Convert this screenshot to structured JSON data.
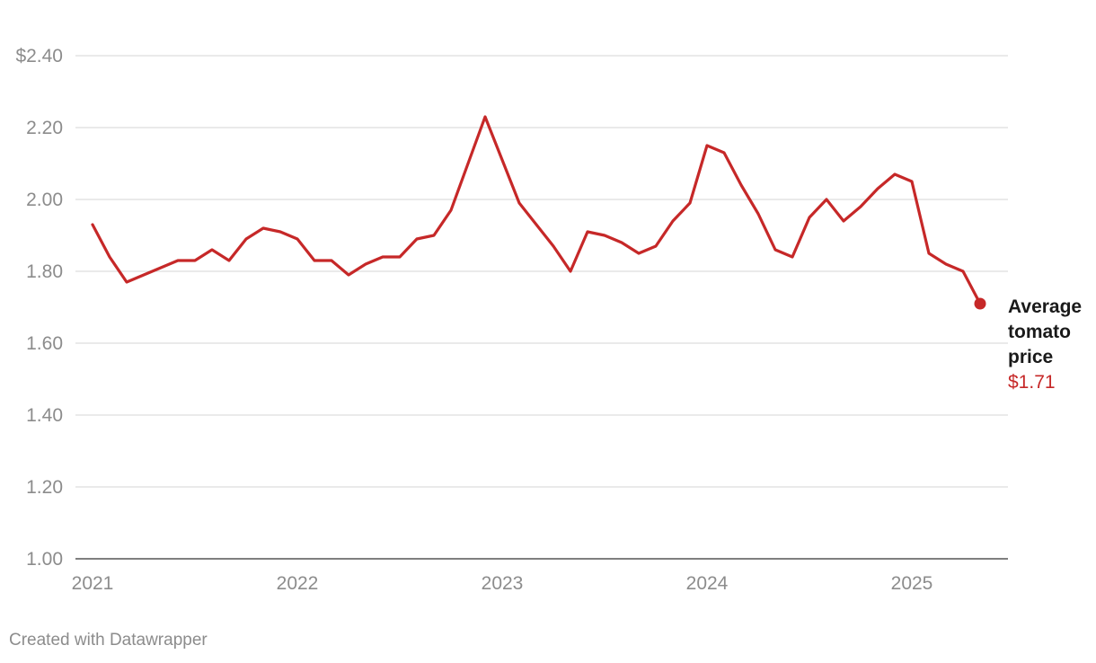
{
  "chart_data": {
    "type": "line",
    "x": [
      "2021-01",
      "2021-02",
      "2021-03",
      "2021-04",
      "2021-05",
      "2021-06",
      "2021-07",
      "2021-08",
      "2021-09",
      "2021-10",
      "2021-11",
      "2021-12",
      "2022-01",
      "2022-02",
      "2022-03",
      "2022-04",
      "2022-05",
      "2022-06",
      "2022-07",
      "2022-08",
      "2022-09",
      "2022-10",
      "2022-11",
      "2022-12",
      "2023-01",
      "2023-02",
      "2023-03",
      "2023-04",
      "2023-05",
      "2023-06",
      "2023-07",
      "2023-08",
      "2023-09",
      "2023-10",
      "2023-11",
      "2023-12",
      "2024-01",
      "2024-02",
      "2024-03",
      "2024-04",
      "2024-05",
      "2024-06",
      "2024-07",
      "2024-08",
      "2024-09",
      "2024-10",
      "2024-11",
      "2024-12",
      "2025-01",
      "2025-02",
      "2025-03",
      "2025-04",
      "2025-05"
    ],
    "series": [
      {
        "name": "Average tomato price",
        "color": "#c62828",
        "values": [
          1.93,
          1.84,
          1.77,
          1.79,
          1.81,
          1.83,
          1.83,
          1.86,
          1.83,
          1.89,
          1.92,
          1.91,
          1.89,
          1.83,
          1.83,
          1.79,
          1.82,
          1.84,
          1.84,
          1.89,
          1.9,
          1.97,
          2.1,
          2.23,
          2.11,
          1.99,
          1.93,
          1.87,
          1.8,
          1.91,
          1.9,
          1.88,
          1.85,
          1.87,
          1.94,
          1.99,
          2.15,
          2.13,
          2.04,
          1.96,
          1.86,
          1.84,
          1.95,
          2.0,
          1.94,
          1.98,
          2.03,
          2.07,
          2.05,
          1.85,
          1.82,
          1.8,
          1.71
        ]
      }
    ],
    "end_label": {
      "line1": "Average",
      "line2": "tomato",
      "line3": "price",
      "value": "$1.71"
    },
    "yticks": [
      "$2.40",
      "2.20",
      "2.00",
      "1.80",
      "1.60",
      "1.40",
      "1.20",
      "1.00"
    ],
    "xticks": [
      "2021",
      "2022",
      "2023",
      "2024",
      "2025"
    ],
    "ylim": [
      1.0,
      2.4
    ],
    "grid": true
  },
  "credit": "Created with Datawrapper"
}
